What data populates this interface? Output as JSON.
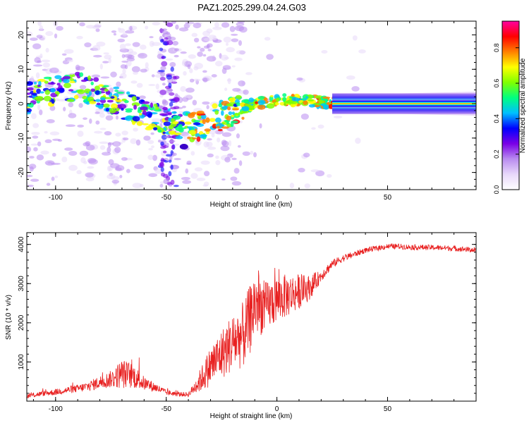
{
  "title": "PAZ1.2025.299.04.24.G03",
  "chart_data": [
    {
      "type": "heatmap",
      "title": "PAZ1.2025.299.04.24.G03",
      "xlabel": "Height of straight line (km)",
      "ylabel": "Frequency (Hz)",
      "xlim": [
        -113,
        90
      ],
      "ylim": [
        -25,
        24
      ],
      "xticks": [
        -100,
        -50,
        0,
        50
      ],
      "xtick_labels": [
        "-100",
        "-50",
        "0",
        "50"
      ],
      "yticks": [
        20,
        10,
        0,
        -10,
        -20
      ],
      "ytick_labels": [
        "20",
        "10",
        "0",
        "-10",
        "-20"
      ],
      "ridge": {
        "x": [
          -112,
          -100,
          -90,
          -80,
          -70,
          -60,
          -50,
          -40,
          -35,
          -30,
          -20,
          -10,
          0,
          10,
          20,
          30,
          50,
          70,
          90
        ],
        "freq_hz": [
          3,
          4,
          5,
          3,
          0,
          -3,
          -5,
          -7,
          -6.5,
          -5,
          -2,
          0,
          1,
          1,
          0.5,
          0,
          0,
          0,
          0
        ]
      },
      "colorbar": {
        "label": "Normalized spectral amplitude",
        "range": [
          0,
          0.95
        ],
        "ticks": [
          0.0,
          0.2,
          0.4,
          0.6,
          0.8
        ],
        "tick_labels": [
          "0.0",
          "0.2",
          "0.4",
          "0.6",
          "0.8"
        ],
        "colors": [
          "#ffffff",
          "#e8d8fa",
          "#b98cf0",
          "#7a00e6",
          "#0000ff",
          "#00bfff",
          "#00ff80",
          "#80ff00",
          "#ffff00",
          "#ff8000",
          "#ff0000",
          "#ff00a0"
        ]
      }
    },
    {
      "type": "line",
      "xlabel": "Height of straight line (km)",
      "ylabel": "SNR (10 * v/v)",
      "xlim": [
        -113,
        90
      ],
      "ylim": [
        0,
        4300
      ],
      "xticks": [
        -100,
        -50,
        0,
        50
      ],
      "xtick_labels": [
        "-100",
        "-50",
        "0",
        "50"
      ],
      "yticks": [
        1000,
        2000,
        3000,
        4000
      ],
      "ytick_labels": [
        "1000",
        "2000",
        "3000",
        "4000"
      ],
      "color": "#e82020",
      "series": [
        {
          "name": "SNR",
          "x": [
            -113,
            -105,
            -100,
            -95,
            -90,
            -85,
            -80,
            -75,
            -70,
            -65,
            -60,
            -55,
            -50,
            -45,
            -40,
            -38,
            -35,
            -30,
            -25,
            -20,
            -15,
            -12,
            -10,
            -5,
            0,
            5,
            10,
            15,
            20,
            25,
            30,
            35,
            40,
            45,
            50,
            55,
            60,
            70,
            80,
            90
          ],
          "values": [
            130,
            200,
            230,
            280,
            320,
            380,
            480,
            560,
            700,
            650,
            450,
            350,
            220,
            180,
            170,
            300,
            500,
            900,
            1200,
            1500,
            1700,
            2100,
            2500,
            2400,
            2600,
            2700,
            2800,
            2900,
            3200,
            3500,
            3650,
            3750,
            3850,
            3900,
            3950,
            3950,
            3930,
            3920,
            3900,
            3850
          ],
          "noise": [
            60,
            70,
            80,
            90,
            100,
            130,
            170,
            220,
            380,
            320,
            180,
            120,
            70,
            60,
            60,
            130,
            280,
            520,
            650,
            750,
            850,
            900,
            900,
            650,
            600,
            550,
            450,
            300,
            150,
            110,
            90,
            80,
            70,
            70,
            70,
            70,
            70,
            70,
            70,
            70
          ]
        }
      ]
    }
  ]
}
